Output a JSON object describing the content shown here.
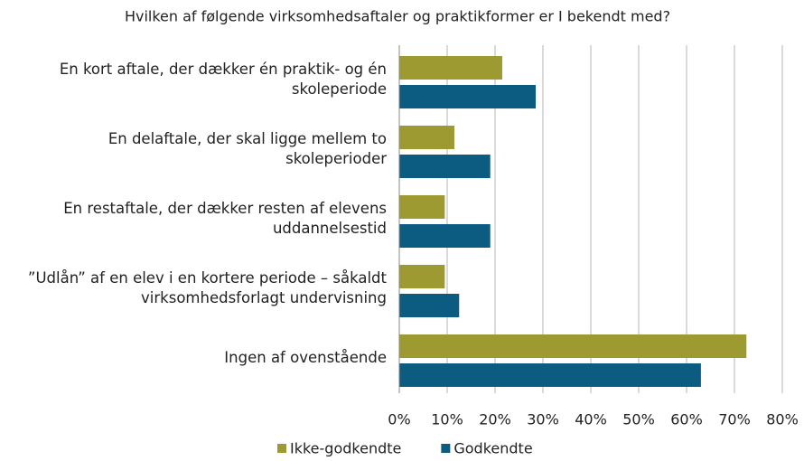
{
  "chart_data": {
    "type": "hbar",
    "title": "Hvilken af følgende virksomhedsaftaler og praktikformer er I bekendt med?",
    "categories": [
      "En kort aftale, der dækker én praktik- og én skoleperiode",
      "En delaftale, der skal ligge mellem to skoleperioder",
      "En restaftale, der dækker resten af elevens uddannelsestid",
      "”Udlån” af en elev i en kortere periode – såkaldt virksomhedsforlagt undervisning",
      "Ingen af ovenstående"
    ],
    "series": [
      {
        "name": "Ikke-godkendte",
        "color": "#9c9a30",
        "values": [
          21.5,
          11.5,
          9.5,
          9.5,
          72.5
        ]
      },
      {
        "name": "Godkendte",
        "color": "#0b5c80",
        "values": [
          28.5,
          19,
          19,
          12.5,
          63
        ]
      }
    ],
    "xlim": [
      0,
      80
    ],
    "xticks": [
      {
        "value": 0,
        "label": "0%"
      },
      {
        "value": 10,
        "label": "10%"
      },
      {
        "value": 20,
        "label": "20%"
      },
      {
        "value": 30,
        "label": "30%"
      },
      {
        "value": 40,
        "label": "40%"
      },
      {
        "value": 50,
        "label": "50%"
      },
      {
        "value": 60,
        "label": "60%"
      },
      {
        "value": 70,
        "label": "70%"
      },
      {
        "value": 80,
        "label": "80%"
      }
    ],
    "grid": true,
    "legend": "bottom"
  }
}
